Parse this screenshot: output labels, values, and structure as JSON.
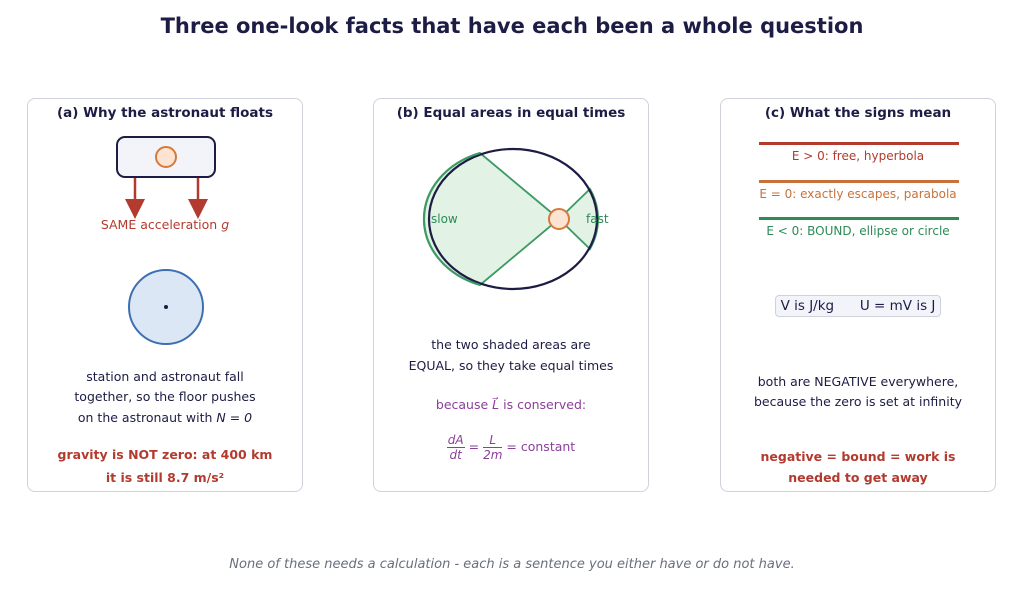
{
  "title": "Three one-look facts that have each been a whole question",
  "panel_a": {
    "title": "(a) Why the astronaut floats",
    "accel_label": "SAME acceleration",
    "accel_symbol": "g",
    "text_line1": "station and astronaut fall",
    "text_line2": "together, so the floor pushes",
    "text_line3_prefix": "on the astronaut with",
    "text_line3_math": "N = 0",
    "note_line1": "gravity is NOT zero: at 400 km",
    "note_line2": "it is still 8.7 m/s²"
  },
  "panel_b": {
    "title": "(b) Equal areas in equal times",
    "slow_label": "slow",
    "fast_label": "fast",
    "text_line1": "the two shaded areas are",
    "text_line2": "EQUAL, so they take equal times",
    "because_prefix": "because",
    "because_symbol": "L⃗",
    "because_suffix": "is conserved:",
    "eq_num1": "dA",
    "eq_den1": "dt",
    "eq_num2": "L",
    "eq_den2": "2m",
    "eq_equals": "=",
    "eq_rhs": "constant"
  },
  "panel_c": {
    "title": "(c) What the signs mean",
    "case1": "E > 0: free, hyperbola",
    "case2": "E = 0: exactly escapes, parabola",
    "case3": "E < 0: BOUND, ellipse or circle",
    "units_v": "V is J/kg",
    "units_u": "U = mV is J",
    "text_line1": "both are NEGATIVE everywhere,",
    "text_line2": "because the zero is set at infinity",
    "note_line1": "negative  =  bound  =  work is",
    "note_line2": "needed to get away"
  },
  "footer": "None of these needs a calculation - each is a sentence you either have or do not have.",
  "colors": {
    "navy": "#1c1c44",
    "red": "#b23a2e",
    "orange": "#c7723a",
    "green": "#2e8a57",
    "purple": "#8a3f99",
    "panel_border": "#cfd2dc"
  }
}
